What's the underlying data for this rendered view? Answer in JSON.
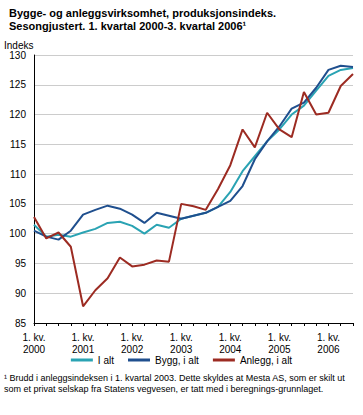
{
  "chart_data": {
    "type": "line",
    "title": "Bygge- og anleggsvirksomhet, produksjonsindeks.",
    "subtitle": "Sesongjustert. 1. kvartal 2000-3. kvartal 2006¹",
    "y_label": "Indeks",
    "footnote": "¹ Brudd i anleggsindeksen i 1. kvartal 2003. Dette skyldes at Mesta AS, som er skilt ut som et privat selskap fra Statens vegvesen, er tatt med i beregnings-grunnlaget.",
    "categories": [
      "1. kv.\n2000",
      null,
      null,
      null,
      "1. kv.\n2001",
      null,
      null,
      null,
      "1. kv.\n2002",
      null,
      null,
      null,
      "1. kv.\n2003",
      null,
      null,
      null,
      "1. kv.\n2004",
      null,
      null,
      null,
      "1. kv.\n2005",
      null,
      null,
      null,
      "1. kv.\n2006",
      null,
      null
    ],
    "series": [
      {
        "name": "I alt",
        "color": "#2aa3b3",
        "values": [
          101.5,
          99.5,
          99.8,
          99.5,
          100.2,
          100.8,
          101.8,
          102,
          101.3,
          100,
          101.5,
          101,
          102.5,
          103,
          103.5,
          104.5,
          107,
          110.5,
          113,
          115.5,
          117.5,
          120,
          121.5,
          124,
          126.5,
          127.5,
          127.8
        ]
      },
      {
        "name": "Bygg, i alt",
        "color": "#1f4f8e",
        "values": [
          100.5,
          99.5,
          99,
          100.5,
          103.2,
          104,
          104.7,
          104.2,
          103.2,
          101.8,
          103.5,
          103,
          102.5,
          103,
          103.5,
          104.5,
          105.5,
          108,
          112.5,
          115.5,
          118,
          121,
          122,
          124.5,
          127.5,
          128.2,
          128
        ]
      },
      {
        "name": "Anlegg, i alt",
        "color": "#9c2b22",
        "values": [
          102.8,
          99.2,
          100.2,
          97.8,
          87.8,
          90.5,
          92.5,
          96,
          94.5,
          94.8,
          95.5,
          95.3,
          105,
          104.6,
          104,
          107.5,
          111.5,
          117.5,
          114.5,
          120.3,
          117.5,
          116.2,
          123.8,
          120,
          120.3,
          124.8,
          126.8
        ]
      }
    ],
    "ylim": [
      85,
      130
    ],
    "yticks": [
      85,
      90,
      95,
      100,
      105,
      110,
      115,
      120,
      125,
      130
    ],
    "grid": true,
    "legend": "bottom"
  }
}
